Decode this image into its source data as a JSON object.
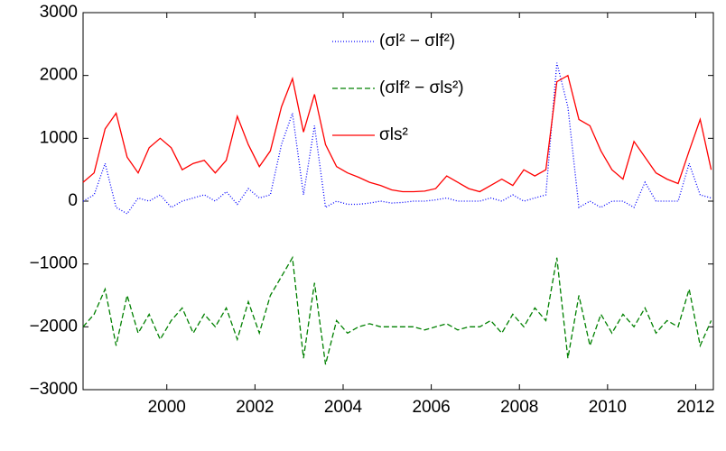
{
  "chart_data": {
    "type": "line",
    "x": [
      1998.1,
      1998.35,
      1998.6,
      1998.85,
      1999.1,
      1999.35,
      1999.6,
      1999.85,
      2000.1,
      2000.35,
      2000.6,
      2000.85,
      2001.1,
      2001.35,
      2001.6,
      2001.85,
      2002.1,
      2002.35,
      2002.6,
      2002.85,
      2003.1,
      2003.35,
      2003.6,
      2003.85,
      2004.1,
      2004.35,
      2004.6,
      2004.85,
      2005.1,
      2005.35,
      2005.6,
      2005.85,
      2006.1,
      2006.35,
      2006.6,
      2006.85,
      2007.1,
      2007.35,
      2007.6,
      2007.85,
      2008.1,
      2008.35,
      2008.6,
      2008.85,
      2009.1,
      2009.35,
      2009.6,
      2009.85,
      2010.1,
      2010.35,
      2010.6,
      2010.85,
      2011.1,
      2011.35,
      2011.6,
      2011.85,
      2012.1,
      2012.35
    ],
    "series": [
      {
        "name": "(σl² − σlf²)",
        "color": "#0000ff",
        "dash": "1,2",
        "values": [
          0,
          100,
          600,
          -100,
          -200,
          50,
          0,
          100,
          -100,
          0,
          50,
          100,
          0,
          150,
          -50,
          200,
          50,
          100,
          900,
          1400,
          100,
          1200,
          -100,
          0,
          -50,
          -50,
          -30,
          0,
          -30,
          -20,
          0,
          0,
          20,
          50,
          0,
          0,
          0,
          50,
          0,
          100,
          0,
          50,
          100,
          2200,
          1500,
          -100,
          0,
          -100,
          0,
          0,
          -100,
          300,
          0,
          0,
          0,
          600,
          100,
          50
        ]
      },
      {
        "name": "(σlf² − σls²)",
        "color": "#008000",
        "dash": "6,3",
        "values": [
          -2000,
          -1800,
          -1400,
          -2300,
          -1500,
          -2100,
          -1800,
          -2200,
          -1900,
          -1700,
          -2100,
          -1800,
          -2000,
          -1700,
          -2200,
          -1600,
          -2100,
          -1500,
          -1200,
          -900,
          -2500,
          -1300,
          -2600,
          -1900,
          -2100,
          -2000,
          -1950,
          -2000,
          -2000,
          -2000,
          -2000,
          -2050,
          -2000,
          -1950,
          -2050,
          -2000,
          -2000,
          -1900,
          -2100,
          -1800,
          -2000,
          -1700,
          -1900,
          -900,
          -2500,
          -1500,
          -2300,
          -1800,
          -2100,
          -1800,
          -2000,
          -1700,
          -2100,
          -1900,
          -2000,
          -1400,
          -2300,
          -1900
        ]
      },
      {
        "name": "σls²",
        "color": "#ff0000",
        "dash": "",
        "values": [
          300,
          450,
          1150,
          1400,
          700,
          450,
          850,
          1000,
          850,
          500,
          600,
          650,
          450,
          650,
          1350,
          900,
          550,
          800,
          1500,
          1950,
          1100,
          1700,
          900,
          550,
          450,
          380,
          300,
          250,
          180,
          150,
          150,
          160,
          200,
          400,
          300,
          200,
          150,
          250,
          350,
          250,
          500,
          400,
          500,
          1900,
          2000,
          1300,
          1200,
          800,
          500,
          350,
          950,
          700,
          450,
          350,
          280,
          800,
          1300,
          500
        ]
      }
    ],
    "xlim": [
      1998.1,
      2012.4
    ],
    "xticks": [
      2000,
      2002,
      2004,
      2006,
      2008,
      2010,
      2012
    ],
    "ylim": [
      -3000,
      3000
    ],
    "yticks": [
      {
        "value": -3000,
        "label": "−3000"
      },
      {
        "value": -2000,
        "label": "−2000"
      },
      {
        "value": -1000,
        "label": "−1000"
      },
      0,
      1000,
      2000,
      3000
    ]
  }
}
